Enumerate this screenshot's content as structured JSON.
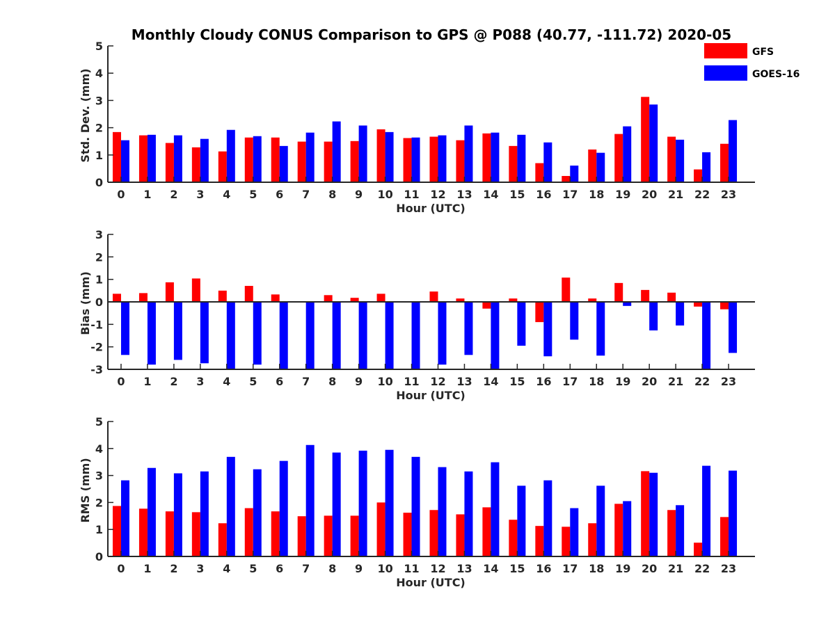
{
  "title": "Monthly Cloudy CONUS Comparison to GPS @ P088 (40.77, -111.72) 2020-05",
  "legend": {
    "placement": "top-right",
    "entries": [
      {
        "name": "GFS",
        "color": "#ff0000"
      },
      {
        "name": "GOES-16",
        "color": "#0000ff"
      }
    ]
  },
  "chart_data": [
    {
      "type": "bar",
      "xlabel": "Hour (UTC)",
      "ylabel": "Std. Dev. (mm)",
      "ylim": [
        0,
        5
      ],
      "yticks": [
        "0",
        "1",
        "2",
        "3",
        "4",
        "5"
      ],
      "categories": [
        "0",
        "1",
        "2",
        "3",
        "4",
        "5",
        "6",
        "7",
        "8",
        "9",
        "10",
        "11",
        "12",
        "13",
        "14",
        "15",
        "16",
        "17",
        "18",
        "19",
        "20",
        "21",
        "22",
        "23"
      ],
      "series": [
        {
          "name": "GFS",
          "color": "#ff0000",
          "values": [
            1.84,
            1.72,
            1.44,
            1.28,
            1.13,
            1.64,
            1.64,
            1.49,
            1.49,
            1.51,
            1.94,
            1.62,
            1.67,
            1.54,
            1.79,
            1.33,
            0.7,
            0.23,
            1.2,
            1.77,
            3.13,
            1.67,
            0.47,
            1.41
          ]
        },
        {
          "name": "GOES-16",
          "color": "#0000ff",
          "values": [
            1.54,
            1.74,
            1.72,
            1.59,
            1.92,
            1.69,
            1.33,
            1.82,
            2.23,
            2.08,
            1.84,
            1.64,
            1.72,
            2.08,
            1.82,
            1.74,
            1.46,
            0.61,
            1.08,
            2.05,
            2.85,
            1.56,
            1.1,
            2.28
          ]
        }
      ]
    },
    {
      "type": "bar",
      "xlabel": "Hour (UTC)",
      "ylabel": "Bias (mm)",
      "ylim": [
        -3,
        3
      ],
      "yticks": [
        "-3",
        "-2",
        "-1",
        "0",
        "1",
        "2",
        "3"
      ],
      "zero_line": true,
      "categories": [
        "0",
        "1",
        "2",
        "3",
        "4",
        "5",
        "6",
        "7",
        "8",
        "9",
        "10",
        "11",
        "12",
        "13",
        "14",
        "15",
        "16",
        "17",
        "18",
        "19",
        "20",
        "21",
        "22",
        "23"
      ],
      "series": [
        {
          "name": "GFS",
          "color": "#ff0000",
          "values": [
            0.36,
            0.39,
            0.87,
            1.04,
            0.5,
            0.71,
            0.33,
            0.02,
            0.3,
            0.18,
            0.36,
            -0.03,
            0.46,
            0.15,
            -0.3,
            0.15,
            -0.9,
            1.08,
            0.15,
            0.84,
            0.53,
            0.41,
            -0.21,
            -0.33
          ]
        },
        {
          "name": "GOES-16",
          "color": "#0000ff",
          "values": [
            -2.36,
            -2.79,
            -2.58,
            -2.73,
            -3.0,
            -2.79,
            -3.0,
            -3.0,
            -3.0,
            -3.0,
            -3.0,
            -3.0,
            -2.79,
            -2.36,
            -3.0,
            -1.95,
            -2.42,
            -1.68,
            -2.39,
            -0.18,
            -1.27,
            -1.05,
            -3.0,
            -2.27
          ]
        }
      ]
    },
    {
      "type": "bar",
      "xlabel": "Hour (UTC)",
      "ylabel": "RMS (mm)",
      "ylim": [
        0,
        5
      ],
      "yticks": [
        "0",
        "1",
        "2",
        "3",
        "4",
        "5"
      ],
      "categories": [
        "0",
        "1",
        "2",
        "3",
        "4",
        "5",
        "6",
        "7",
        "8",
        "9",
        "10",
        "11",
        "12",
        "13",
        "14",
        "15",
        "16",
        "17",
        "18",
        "19",
        "20",
        "21",
        "22",
        "23"
      ],
      "series": [
        {
          "name": "GFS",
          "color": "#ff0000",
          "values": [
            1.87,
            1.77,
            1.67,
            1.64,
            1.23,
            1.79,
            1.67,
            1.49,
            1.51,
            1.51,
            2.0,
            1.62,
            1.72,
            1.56,
            1.82,
            1.36,
            1.13,
            1.1,
            1.23,
            1.95,
            3.16,
            1.72,
            0.51,
            1.46
          ]
        },
        {
          "name": "GOES-16",
          "color": "#0000ff",
          "values": [
            2.82,
            3.28,
            3.08,
            3.15,
            3.69,
            3.23,
            3.54,
            4.13,
            3.85,
            3.92,
            3.95,
            3.69,
            3.31,
            3.15,
            3.49,
            2.62,
            2.82,
            1.79,
            2.62,
            2.05,
            3.1,
            1.9,
            3.36,
            3.18
          ]
        }
      ]
    }
  ]
}
